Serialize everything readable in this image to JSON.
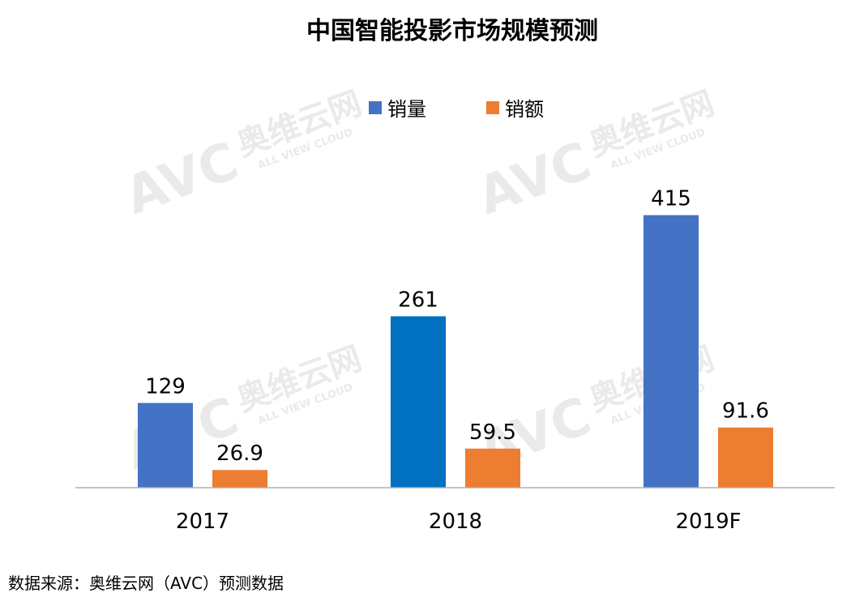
{
  "chart_data": {
    "type": "bar",
    "title": "中国智能投影市场规模预测",
    "categories": [
      "2017",
      "2018",
      "2019F"
    ],
    "series": [
      {
        "name": "销量",
        "values": [
          129,
          261,
          415
        ],
        "colors": [
          "#4472C4",
          "#0070C0",
          "#4472C4"
        ]
      },
      {
        "name": "销额",
        "values": [
          26.9,
          59.5,
          91.6
        ],
        "colors": [
          "#ED7D31",
          "#ED7D31",
          "#ED7D31"
        ]
      }
    ],
    "value_labels": [
      [
        "129",
        "261",
        "415"
      ],
      [
        "26.9",
        "59.5",
        "91.6"
      ]
    ],
    "ylim": [
      0,
      450
    ],
    "grid": false,
    "legend_position": "top-center"
  },
  "source": "数据来源：奥维云网（AVC）预测数据",
  "watermark": {
    "logo": "AVC",
    "cn": "奥维云网",
    "en": "ALL VIEW CLOUD"
  }
}
